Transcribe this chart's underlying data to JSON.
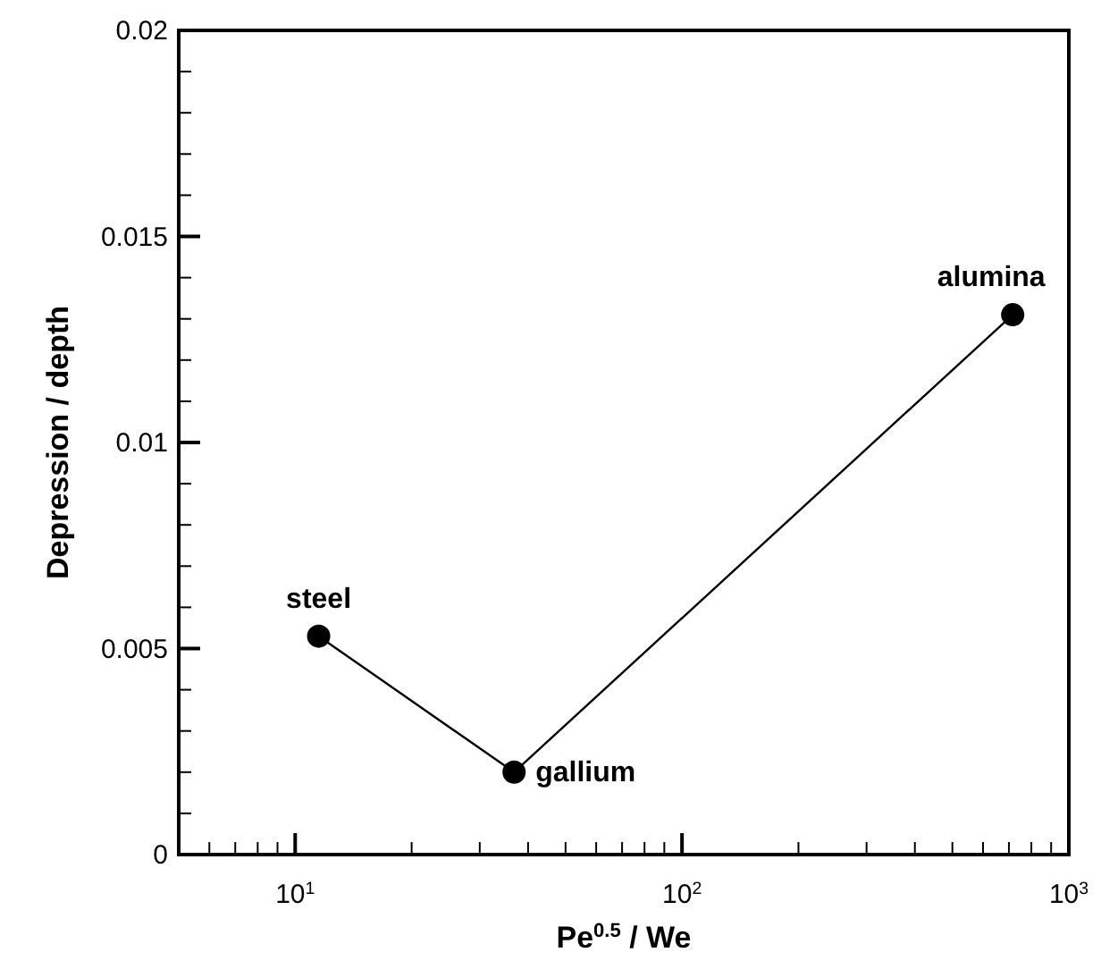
{
  "chart_data": {
    "type": "line",
    "xlabel": "Pe$^{0.5}$ / We",
    "ylabel": "Depression / depth",
    "log": "x",
    "x": [
      11.5,
      36.8,
      716
    ],
    "series": [
      {
        "color": "#000000",
        "values": [
          0.0053,
          0.002,
          0.0131
        ]
      }
    ],
    "marker": "circle",
    "line_style": "solid",
    "grid": false,
    "xlim": [
      5,
      1000
    ],
    "xticks": [
      {
        "value": 6,
        "label": null
      },
      {
        "value": 7,
        "label": null
      },
      {
        "value": 8,
        "label": null
      },
      {
        "value": 9,
        "label": null
      },
      {
        "value": 10,
        "label": "10$^{1}$"
      },
      {
        "value": 20,
        "label": null
      },
      {
        "value": 30,
        "label": null
      },
      {
        "value": 40,
        "label": null
      },
      {
        "value": 50,
        "label": null
      },
      {
        "value": 60,
        "label": null
      },
      {
        "value": 70,
        "label": null
      },
      {
        "value": 80,
        "label": null
      },
      {
        "value": 90,
        "label": null
      },
      {
        "value": 100,
        "label": "10$^{2}$"
      },
      {
        "value": 200,
        "label": null
      },
      {
        "value": 300,
        "label": null
      },
      {
        "value": 400,
        "label": null
      },
      {
        "value": 500,
        "label": null
      },
      {
        "value": 600,
        "label": null
      },
      {
        "value": 700,
        "label": null
      },
      {
        "value": 800,
        "label": null
      },
      {
        "value": 900,
        "label": null
      },
      {
        "value": 1000,
        "label": "10$^{3}$"
      }
    ],
    "ylim": [
      0,
      0.02
    ],
    "yticks": [
      0,
      {
        "value": 0.001,
        "label": null
      },
      {
        "value": 0.002,
        "label": null
      },
      {
        "value": 0.003,
        "label": null
      },
      {
        "value": 0.004,
        "label": null
      },
      0.005,
      {
        "value": 0.006,
        "label": null
      },
      {
        "value": 0.007,
        "label": null
      },
      {
        "value": 0.008,
        "label": null
      },
      {
        "value": 0.009,
        "label": null
      },
      0.01,
      {
        "value": 0.011,
        "label": null
      },
      {
        "value": 0.012,
        "label": null
      },
      {
        "value": 0.013,
        "label": null
      },
      {
        "value": 0.014,
        "label": null
      },
      0.015,
      {
        "value": 0.016,
        "label": null
      },
      {
        "value": 0.017,
        "label": null
      },
      {
        "value": 0.018,
        "label": null
      },
      {
        "value": 0.019,
        "label": null
      },
      0.02
    ],
    "annotations": [
      {
        "text": "steel",
        "x": 11.5,
        "y": 0.0053
      },
      {
        "text": "gallium",
        "x": 36.8,
        "y": 0.002
      },
      {
        "text": "alumina",
        "x": 716,
        "y": 0.0131
      }
    ]
  }
}
